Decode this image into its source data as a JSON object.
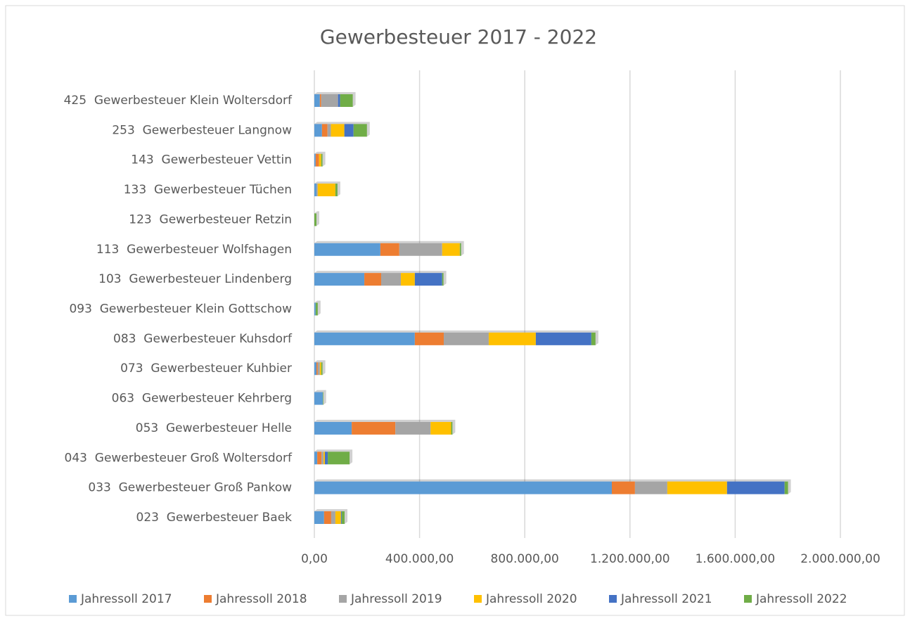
{
  "chart_data": {
    "type": "stacked_bar_horizontal",
    "title": "Gewerbesteuer 2017 - 2022",
    "categories": [
      "023  Gewerbesteuer Baek",
      "033  Gewerbesteuer Groß Pankow",
      "043  Gewerbesteuer Groß Woltersdorf",
      "053  Gewerbesteuer Helle",
      "063  Gewerbesteuer Kehrberg",
      "073  Gewerbesteuer Kuhbier",
      "083  Gewerbesteuer Kuhsdorf",
      "093  Gewerbesteuer Klein Gottschow",
      "103  Gewerbesteuer Lindenberg",
      "113  Gewerbesteuer Wolfshagen",
      "123  Gewerbesteuer Retzin",
      "133  Gewerbesteuer Tüchen",
      "143  Gewerbesteuer Vettin",
      "253  Gewerbesteuer Langnow",
      "425  Gewerbesteuer Klein Woltersdorf"
    ],
    "series": [
      {
        "name": "Jahressoll 2017",
        "color": "#5b9bd5",
        "values": [
          37000,
          1131000,
          11000,
          142000,
          32000,
          8000,
          382000,
          5000,
          190000,
          251000,
          0,
          8000,
          5000,
          29000,
          21000
        ]
      },
      {
        "name": "Jahressoll 2018",
        "color": "#ed7d31",
        "values": [
          27000,
          88000,
          16000,
          166000,
          0,
          5000,
          110000,
          0,
          64000,
          72000,
          0,
          0,
          13000,
          21000,
          5000
        ]
      },
      {
        "name": "Jahressoll 2019",
        "color": "#a5a5a5",
        "values": [
          16000,
          123000,
          8000,
          134000,
          0,
          8000,
          171000,
          0,
          75000,
          163000,
          0,
          5000,
          0,
          13000,
          64000
        ]
      },
      {
        "name": "Jahressoll 2020",
        "color": "#ffc000",
        "values": [
          21000,
          227000,
          5000,
          78000,
          0,
          5000,
          179000,
          0,
          53000,
          67000,
          0,
          67000,
          8000,
          51000,
          0
        ]
      },
      {
        "name": "Jahressoll 2021",
        "color": "#4472c4",
        "values": [
          3000,
          219000,
          11000,
          0,
          0,
          0,
          211000,
          0,
          104000,
          0,
          0,
          0,
          0,
          35000,
          8000
        ]
      },
      {
        "name": "Jahressoll 2022",
        "color": "#70ad47",
        "values": [
          11000,
          13000,
          83000,
          5000,
          2000,
          5000,
          16000,
          8000,
          5000,
          5000,
          8000,
          8000,
          5000,
          51000,
          48000
        ]
      }
    ],
    "xlim": [
      0,
      2000000
    ],
    "xticks": [
      {
        "value": 0,
        "label": "0,00"
      },
      {
        "value": 400000,
        "label": "400.000,00"
      },
      {
        "value": 800000,
        "label": "800.000,00"
      },
      {
        "value": 1200000,
        "label": "1.200.000,00"
      },
      {
        "value": 1600000,
        "label": "1.600.000,00"
      },
      {
        "value": 2000000,
        "label": "2.000.000,00"
      }
    ],
    "grid": true,
    "legend": "bottom"
  }
}
